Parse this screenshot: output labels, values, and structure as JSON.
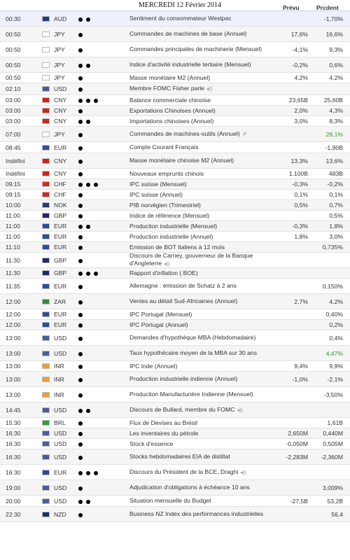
{
  "header": {
    "title": "MERCREDI     12  Février 2014",
    "col_prevu": "Prévu",
    "col_precedent": "Prcdent"
  },
  "flag_colors": {
    "AUD": "#1f3b8a",
    "JPY": "#ffffff",
    "USD": "#4a5d9e",
    "CNY": "#d0241e",
    "EUR": "#2a4ea0",
    "CHF": "#d52b1e",
    "NOK": "#2a3a7a",
    "GBP": "#1a2a6c",
    "ZAR": "#3a8a3a",
    "INR": "#f09a3a",
    "BRL": "#3a9a3a",
    "NZD": "#1f2f6e"
  },
  "rows": [
    {
      "time": "00:30",
      "currency": "AUD",
      "importance": 2,
      "event": "Sentiment du consommateur Westpac",
      "forecast": "",
      "previous": "-1,70%"
    },
    {
      "time": "00:50",
      "currency": "JPY",
      "importance": 1,
      "event": "Commandes de machines de base (Annuel)",
      "forecast": "17,6%",
      "previous": "16,6%"
    },
    {
      "time": "00:50",
      "currency": "JPY",
      "importance": 1,
      "event": "Commandes principales de machinerie (Mensuel)",
      "forecast": "-4,1%",
      "previous": "9,3%"
    },
    {
      "time": "00:50",
      "currency": "JPY",
      "importance": 2,
      "event": "Indice d'activité industrielle tertiaire (Mensuel)",
      "forecast": "-0,2%",
      "previous": "0,6%"
    },
    {
      "time": "00:50",
      "currency": "JPY",
      "importance": 1,
      "event": "Masse monétaire M2 (Annuel)",
      "forecast": "4,2%",
      "previous": "4,2%"
    },
    {
      "time": "02:10",
      "currency": "USD",
      "importance": 1,
      "event": "Membre FOMC Fisher parle",
      "speaker": true,
      "forecast": "",
      "previous": ""
    },
    {
      "time": "03:00",
      "currency": "CNY",
      "importance": 3,
      "event": "Balance commerciale chinoise",
      "forecast": "23,65B",
      "previous": "25,60B"
    },
    {
      "time": "03:00",
      "currency": "CNY",
      "importance": 1,
      "event": "Exportations Chinoises (Annuel)",
      "forecast": "2,0%",
      "previous": "4,3%"
    },
    {
      "time": "03:00",
      "currency": "CNY",
      "importance": 2,
      "event": "Importations chinoises (Annuel)",
      "forecast": "3,0%",
      "previous": "8,3%"
    },
    {
      "time": "07:00",
      "currency": "JPY",
      "importance": 1,
      "event": "Commandes de machines-outils (Annuel)",
      "prelim": "P",
      "forecast": "",
      "previous": "28,1%",
      "previous_green": true
    },
    {
      "time": "08:45",
      "currency": "EUR",
      "importance": 1,
      "event": "Compte Courant Français",
      "forecast": "",
      "previous": "-1,90B"
    },
    {
      "time": "Indéfini",
      "currency": "CNY",
      "importance": 1,
      "event": "Masse monétaire chinoise M2 (Annuel)",
      "forecast": "13,3%",
      "previous": "13,6%"
    },
    {
      "time": "Indéfini",
      "currency": "CNY",
      "importance": 1,
      "event": "Nouveaux emprunts chinois",
      "forecast": "1.100B",
      "previous": "483B"
    },
    {
      "time": "09:15",
      "currency": "CHF",
      "importance": 3,
      "event": "IPC suisse (Mensuel)",
      "forecast": "-0,3%",
      "previous": "-0,2%"
    },
    {
      "time": "09:15",
      "currency": "CHF",
      "importance": 1,
      "event": "IPC suisse (Annuel)",
      "forecast": "0,1%",
      "previous": "0,1%"
    },
    {
      "time": "10:00",
      "currency": "NOK",
      "importance": 1,
      "event": "PIB norvégien (Trimestriel)",
      "forecast": "0,5%",
      "previous": "0,7%"
    },
    {
      "time": "11:00",
      "currency": "GBP",
      "importance": 1,
      "event": "Indice de référence (Mensuel)",
      "forecast": "",
      "previous": "0,5%"
    },
    {
      "time": "11:00",
      "currency": "EUR",
      "importance": 2,
      "event": "Production industrielle (Mensuel)",
      "forecast": "-0,3%",
      "previous": "1,8%"
    },
    {
      "time": "11:00",
      "currency": "EUR",
      "importance": 1,
      "event": "Production industrielle (Annuel)",
      "forecast": "1,8%",
      "previous": "3,0%"
    },
    {
      "time": "11:10",
      "currency": "EUR",
      "importance": 1,
      "event": "Emission de BOT Italiens à 12 mois",
      "forecast": "",
      "previous": "0,735%"
    },
    {
      "time": "11:30",
      "currency": "GBP",
      "importance": 1,
      "event": "Discours de Carney, gouverneur de la Banque d'Angleterre",
      "speaker": true,
      "forecast": "",
      "previous": ""
    },
    {
      "time": "11:30",
      "currency": "GBP",
      "importance": 3,
      "event": "Rapport d'inflation ( BOE)",
      "forecast": "",
      "previous": ""
    },
    {
      "time": "11:35",
      "currency": "EUR",
      "importance": 1,
      "event": "Allemagne : émission de Schatz à 2 ans",
      "forecast": "",
      "previous": "0,150%"
    },
    {
      "time": "12:00",
      "currency": "ZAR",
      "importance": 1,
      "event": "Ventes au détail Sud-Africaines (Annuel)",
      "forecast": "2,7%",
      "previous": "4,2%"
    },
    {
      "time": "12:00",
      "currency": "EUR",
      "importance": 1,
      "event": "IPC Portugal (Mensuel)",
      "forecast": "",
      "previous": "0,40%"
    },
    {
      "time": "12:00",
      "currency": "EUR",
      "importance": 1,
      "event": "IPC Portugal (Annuel)",
      "forecast": "",
      "previous": "0,2%"
    },
    {
      "time": "13:00",
      "currency": "USD",
      "importance": 1,
      "event": "Demandes d'hypothèque MBA (Hebdomadaire)",
      "forecast": "",
      "previous": "0,4%"
    },
    {
      "time": "13:00",
      "currency": "USD",
      "importance": 1,
      "event": "Taux hypothécaire moyen de la MBA sur 30 ans",
      "forecast": "",
      "previous": "4,47%",
      "previous_green": true
    },
    {
      "time": "13:00",
      "currency": "INR",
      "importance": 1,
      "event": "IPC Inde (Annuel)",
      "forecast": "9,4%",
      "previous": "9,9%"
    },
    {
      "time": "13:00",
      "currency": "INR",
      "importance": 1,
      "event": "Production industrielle indienne (Annuel)",
      "forecast": "-1,0%",
      "previous": "-2,1%"
    },
    {
      "time": "13:00",
      "currency": "INR",
      "importance": 1,
      "event": "Production Manufacturière Indienne (Mensuel)",
      "forecast": "",
      "previous": "-3,50%"
    },
    {
      "time": "14:45",
      "currency": "USD",
      "importance": 2,
      "event": "Discours de Bullard, membre du FOMC",
      "speaker": true,
      "forecast": "",
      "previous": ""
    },
    {
      "time": "15:30",
      "currency": "BRL",
      "importance": 1,
      "event": "Flux de Devises au Brésil",
      "forecast": "",
      "previous": "1,61B"
    },
    {
      "time": "16:30",
      "currency": "USD",
      "importance": 1,
      "event": "Les inventaires du pétrole",
      "forecast": "2,650M",
      "previous": "0,440M"
    },
    {
      "time": "16:30",
      "currency": "USD",
      "importance": 1,
      "event": "Stock d'essence",
      "forecast": "-0,050M",
      "previous": "0,505M"
    },
    {
      "time": "16:30",
      "currency": "USD",
      "importance": 1,
      "event": "Stocks hebdomadaires EIA de distillat",
      "forecast": "-2,283M",
      "previous": "-2,360M"
    },
    {
      "time": "16:30",
      "currency": "EUR",
      "importance": 3,
      "event": "Discours du Président de la BCE, Draghi",
      "speaker": true,
      "forecast": "",
      "previous": ""
    },
    {
      "time": "19:00",
      "currency": "USD",
      "importance": 1,
      "event": "Adjudication d'obligations à échéance 10 ans",
      "forecast": "",
      "previous": "3,009%"
    },
    {
      "time": "20:00",
      "currency": "USD",
      "importance": 2,
      "event": "Situation mensuelle du Budget",
      "forecast": "-27,5B",
      "previous": "53,2B"
    },
    {
      "time": "22:30",
      "currency": "NZD",
      "importance": 1,
      "event": "Business NZ Index des performances industrielles",
      "forecast": "",
      "previous": "56,4"
    }
  ]
}
